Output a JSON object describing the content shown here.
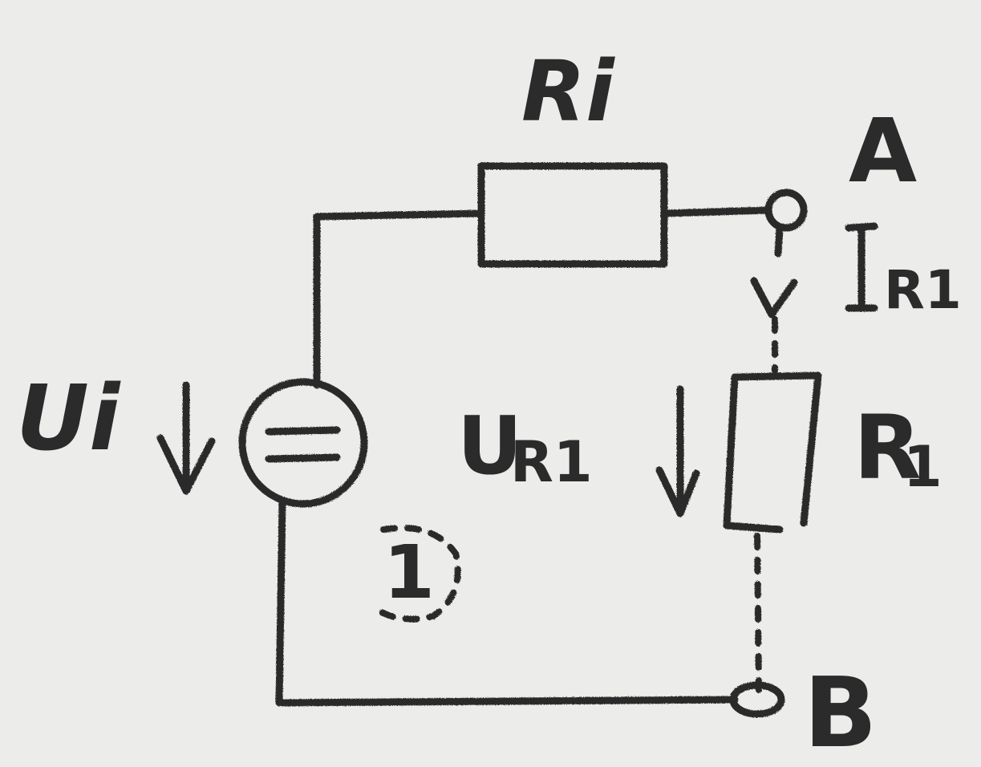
{
  "labels": {
    "ri": "Ri",
    "node_a": "A",
    "current": "I",
    "current_sub": "R1",
    "ui": "Ui",
    "ur1": "U",
    "ur1_sub": "R1",
    "r1": "R",
    "r1_sub": "1",
    "mesh": "1",
    "node_b": "B"
  }
}
